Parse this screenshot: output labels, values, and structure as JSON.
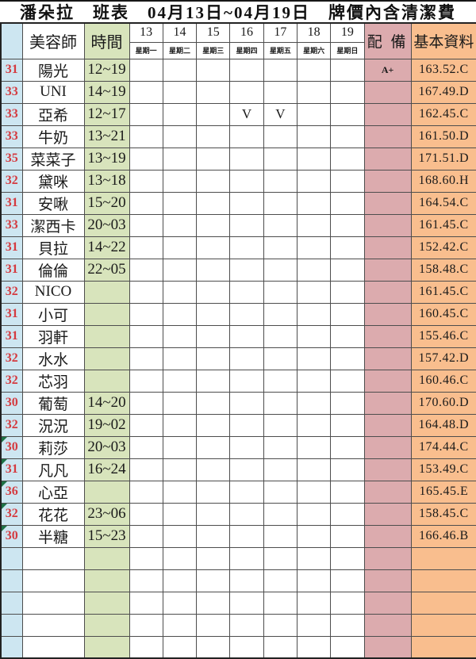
{
  "title": "潘朵拉　班表　04月13日~04月19日　牌價內含清潔費",
  "colors": {
    "num_col_bg": "#cde6f1",
    "time_col_bg": "#d8e4bc",
    "equip_col_bg": "#dcabae",
    "info_col_bg": "#f9be8e",
    "red_text": "#d43b40",
    "green_text": "#00a651",
    "flag_green": "#1e7145"
  },
  "header": {
    "staff": "美容師",
    "time": "時間",
    "equipment": "配 備",
    "info": "基本資料",
    "days": [
      {
        "num": "13",
        "weekday": "星期一",
        "color": "black"
      },
      {
        "num": "14",
        "weekday": "星期二",
        "color": "black"
      },
      {
        "num": "15",
        "weekday": "星期三",
        "color": "black"
      },
      {
        "num": "16",
        "weekday": "星期四",
        "color": "black"
      },
      {
        "num": "17",
        "weekday": "星期五",
        "color": "green"
      },
      {
        "num": "18",
        "weekday": "星期六",
        "color": "red"
      },
      {
        "num": "19",
        "weekday": "星期日",
        "color": "red"
      }
    ]
  },
  "rows": [
    {
      "num": "31",
      "name": "陽光",
      "time": "12~19",
      "days": [
        "",
        "",
        "",
        "",
        "",
        "",
        ""
      ],
      "equipment": "A+",
      "info": "163.52.C",
      "flag": false
    },
    {
      "num": "33",
      "name": "UNI",
      "time": "14~19",
      "days": [
        "",
        "",
        "",
        "",
        "",
        "",
        ""
      ],
      "equipment": "",
      "info": "167.49.D",
      "flag": false
    },
    {
      "num": "33",
      "name": "亞希",
      "time": "12~17",
      "days": [
        "",
        "",
        "",
        "V",
        "V",
        "",
        ""
      ],
      "equipment": "",
      "info": "162.45.C",
      "flag": false
    },
    {
      "num": "33",
      "name": "牛奶",
      "time": "13~21",
      "days": [
        "",
        "",
        "",
        "",
        "",
        "",
        ""
      ],
      "equipment": "",
      "info": "161.50.D",
      "flag": false
    },
    {
      "num": "35",
      "name": "菜菜子",
      "time": "13~19",
      "days": [
        "",
        "",
        "",
        "",
        "",
        "",
        ""
      ],
      "equipment": "",
      "info": "171.51.D",
      "flag": false
    },
    {
      "num": "32",
      "name": "黛咪",
      "time": "13~18",
      "days": [
        "",
        "",
        "",
        "",
        "",
        "",
        ""
      ],
      "equipment": "",
      "info": "168.60.H",
      "flag": false
    },
    {
      "num": "31",
      "name": "安啾",
      "time": "15~20",
      "days": [
        "",
        "",
        "",
        "",
        "",
        "",
        ""
      ],
      "equipment": "",
      "info": "164.54.C",
      "flag": false
    },
    {
      "num": "33",
      "name": "潔西卡",
      "time": "20~03",
      "days": [
        "",
        "",
        "",
        "",
        "",
        "",
        ""
      ],
      "equipment": "",
      "info": "161.45.C",
      "flag": false
    },
    {
      "num": "31",
      "name": "貝拉",
      "time": "14~22",
      "days": [
        "",
        "",
        "",
        "",
        "",
        "",
        ""
      ],
      "equipment": "",
      "info": "152.42.C",
      "flag": false
    },
    {
      "num": "31",
      "name": "倫倫",
      "time": "22~05",
      "days": [
        "",
        "",
        "",
        "",
        "",
        "",
        ""
      ],
      "equipment": "",
      "info": "158.48.C",
      "flag": false
    },
    {
      "num": "32",
      "name": "NICO",
      "time": "",
      "days": [
        "",
        "",
        "",
        "",
        "",
        "",
        ""
      ],
      "equipment": "",
      "info": "161.45.C",
      "flag": false
    },
    {
      "num": "31",
      "name": "小可",
      "time": "",
      "days": [
        "",
        "",
        "",
        "",
        "",
        "",
        ""
      ],
      "equipment": "",
      "info": "160.45.C",
      "flag": false
    },
    {
      "num": "31",
      "name": "羽軒",
      "time": "",
      "days": [
        "",
        "",
        "",
        "",
        "",
        "",
        ""
      ],
      "equipment": "",
      "info": "155.46.C",
      "flag": false
    },
    {
      "num": "32",
      "name": "水水",
      "time": "",
      "days": [
        "",
        "",
        "",
        "",
        "",
        "",
        ""
      ],
      "equipment": "",
      "info": "157.42.D",
      "flag": false
    },
    {
      "num": "32",
      "name": "芯羽",
      "time": "",
      "days": [
        "",
        "",
        "",
        "",
        "",
        "",
        ""
      ],
      "equipment": "",
      "info": "160.46.C",
      "flag": false
    },
    {
      "num": "30",
      "name": "葡萄",
      "time": "14~20",
      "days": [
        "",
        "",
        "",
        "",
        "",
        "",
        ""
      ],
      "equipment": "",
      "info": "170.60.D",
      "flag": false
    },
    {
      "num": "32",
      "name": "況況",
      "time": "19~02",
      "days": [
        "",
        "",
        "",
        "",
        "",
        "",
        ""
      ],
      "equipment": "",
      "info": "164.48.D",
      "flag": false
    },
    {
      "num": "30",
      "name": "莉莎",
      "time": "20~03",
      "days": [
        "",
        "",
        "",
        "",
        "",
        "",
        ""
      ],
      "equipment": "",
      "info": "174.44.C",
      "flag": true
    },
    {
      "num": "31",
      "name": "凡凡",
      "time": "16~24",
      "days": [
        "",
        "",
        "",
        "",
        "",
        "",
        ""
      ],
      "equipment": "",
      "info": "153.49.C",
      "flag": true
    },
    {
      "num": "36",
      "name": "心亞",
      "time": "",
      "days": [
        "",
        "",
        "",
        "",
        "",
        "",
        ""
      ],
      "equipment": "",
      "info": "165.45.E",
      "flag": true
    },
    {
      "num": "32",
      "name": "花花",
      "time": "23~06",
      "days": [
        "",
        "",
        "",
        "",
        "",
        "",
        ""
      ],
      "equipment": "",
      "info": "158.45.C",
      "flag": true
    },
    {
      "num": "30",
      "name": "半糖",
      "time": "15~23",
      "days": [
        "",
        "",
        "",
        "",
        "",
        "",
        ""
      ],
      "equipment": "",
      "info": "166.46.B",
      "flag": true
    }
  ],
  "empty_rows": 5
}
